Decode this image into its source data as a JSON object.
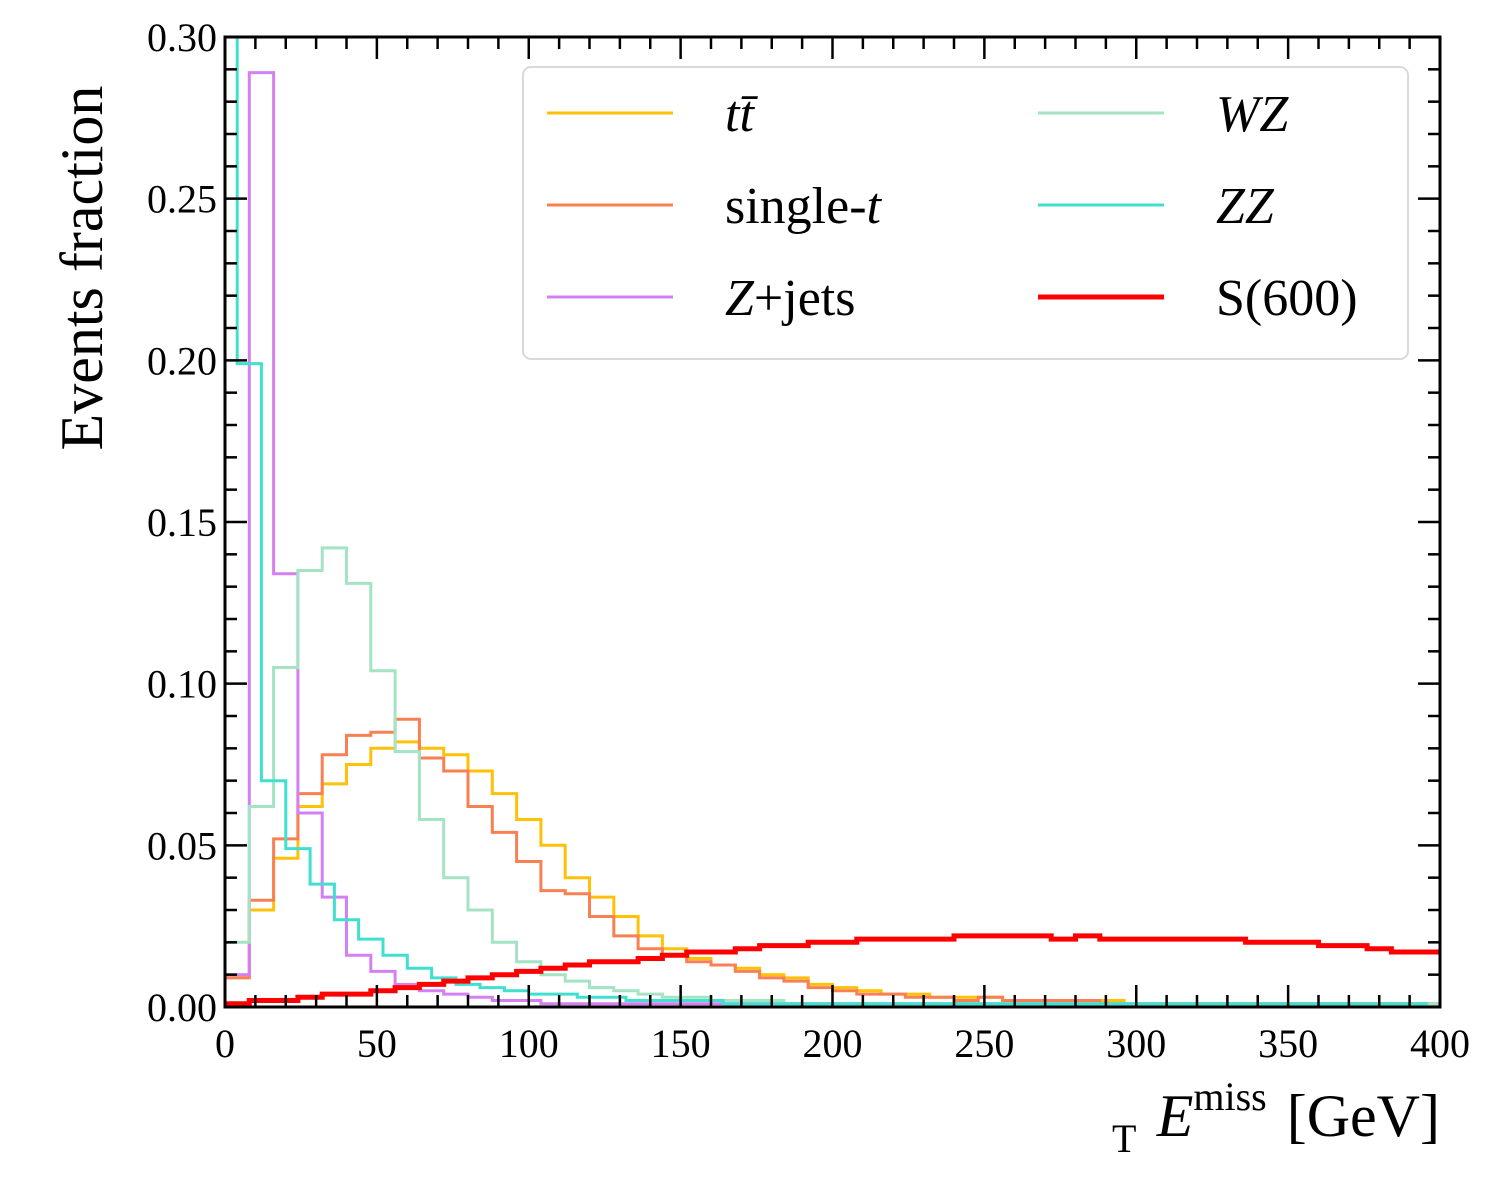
{
  "chart_data": {
    "type": "histogram-step",
    "xlabel_main": "E",
    "xlabel_sub": "T",
    "xlabel_sup": "miss",
    "xlabel_unit": "[GeV]",
    "ylabel": "Events fraction",
    "xlim": [
      0,
      400
    ],
    "ylim": [
      0,
      0.3
    ],
    "xticks": [
      0,
      50,
      100,
      150,
      200,
      250,
      300,
      350,
      400
    ],
    "xtick_labels": [
      "0",
      "50",
      "100",
      "150",
      "200",
      "250",
      "300",
      "350",
      "400"
    ],
    "yticks": [
      0,
      0.05,
      0.1,
      0.15,
      0.2,
      0.25,
      0.3
    ],
    "ytick_labels": [
      "0.00",
      "0.05",
      "0.10",
      "0.15",
      "0.20",
      "0.25",
      "0.30"
    ],
    "x_minor_step": 10,
    "y_minor_step": 0.01,
    "bin_width": 8,
    "bin_edges_start": 0,
    "legend_position": "top-right",
    "series": [
      {
        "name": "tt̄",
        "legend_parts": [
          {
            "t": "t",
            "italic": true
          },
          {
            "t": "t̄",
            "italic": true
          }
        ],
        "color": "#ffc107",
        "width": 3,
        "values": [
          0.01,
          0.03,
          0.046,
          0.062,
          0.069,
          0.075,
          0.08,
          0.082,
          0.08,
          0.078,
          0.073,
          0.066,
          0.058,
          0.05,
          0.04,
          0.034,
          0.028,
          0.022,
          0.018,
          0.015,
          0.013,
          0.012,
          0.01,
          0.009,
          0.007,
          0.006,
          0.005,
          0.004,
          0.004,
          0.003,
          0.003,
          0.003,
          0.002,
          0.002,
          0.002,
          0.002,
          0.002,
          0.001,
          0.001,
          0.001,
          0.001,
          0.001,
          0.001,
          0.001,
          0.001,
          0.001,
          0.001,
          0.001,
          0.001,
          0.001
        ]
      },
      {
        "name": "single-t",
        "legend_parts": [
          {
            "t": "single-",
            "italic": false
          },
          {
            "t": "t",
            "italic": true
          }
        ],
        "color": "#f88053",
        "width": 3,
        "values": [
          0.009,
          0.033,
          0.052,
          0.066,
          0.078,
          0.084,
          0.085,
          0.089,
          0.077,
          0.073,
          0.062,
          0.054,
          0.045,
          0.036,
          0.035,
          0.028,
          0.022,
          0.018,
          0.016,
          0.014,
          0.013,
          0.011,
          0.009,
          0.008,
          0.006,
          0.005,
          0.004,
          0.004,
          0.003,
          0.003,
          0.002,
          0.003,
          0.002,
          0.002,
          0.002,
          0.002,
          0.001,
          0.001,
          0.001,
          0.001,
          0.001,
          0.001,
          0.001,
          0.001,
          0.001,
          0.001,
          0.001,
          0.001,
          0.001,
          0.001
        ]
      },
      {
        "name": "Z+jets",
        "legend_parts": [
          {
            "t": "Z",
            "italic": true
          },
          {
            "t": "+jets",
            "italic": false
          }
        ],
        "color": "#d580f2",
        "width": 3,
        "values": [
          0.01,
          0.289,
          0.134,
          0.06,
          0.034,
          0.016,
          0.011,
          0.007,
          0.005,
          0.004,
          0.003,
          0.002,
          0.002,
          0.001,
          0.001,
          0.001,
          0.001,
          0.001,
          0.001,
          0.001,
          0.001,
          0.001,
          0.001,
          0.001,
          0.001,
          0.001,
          0.001,
          0.001,
          0.001,
          0.001,
          0.001,
          0.001,
          0.001,
          0.001,
          0.001,
          0.001,
          0.001,
          0.001,
          0.001,
          0.001,
          0.001,
          0.001,
          0.001,
          0.001,
          0.001,
          0.001,
          0.001,
          0.001,
          0.001,
          0.001
        ]
      },
      {
        "name": "WZ",
        "legend_parts": [
          {
            "t": "WZ",
            "italic": true
          }
        ],
        "color": "#a4e3c3",
        "width": 3,
        "values": [
          0.02,
          0.062,
          0.105,
          0.135,
          0.142,
          0.131,
          0.104,
          0.079,
          0.058,
          0.04,
          0.03,
          0.02,
          0.014,
          0.01,
          0.008,
          0.006,
          0.005,
          0.004,
          0.003,
          0.003,
          0.002,
          0.002,
          0.002,
          0.001,
          0.001,
          0.001,
          0.001,
          0.001,
          0.001,
          0.001,
          0.001,
          0.001,
          0.001,
          0.001,
          0.001,
          0.001,
          0.001,
          0.001,
          0.001,
          0.001,
          0.001,
          0.001,
          0.001,
          0.001,
          0.001,
          0.001,
          0.001,
          0.001,
          0.001,
          0.001
        ]
      },
      {
        "name": "ZZ",
        "legend_parts": [
          {
            "t": "ZZ",
            "italic": true
          }
        ],
        "color": "#40e0d0",
        "width": 3,
        "values": [
          0.3,
          0.199,
          0.07,
          0.049,
          0.038,
          0.027,
          0.021,
          0.016,
          0.012,
          0.009,
          0.007,
          0.006,
          0.005,
          0.004,
          0.004,
          0.003,
          0.003,
          0.002,
          0.002,
          0.002,
          0.002,
          0.001,
          0.001,
          0.001,
          0.001,
          0.001,
          0.001,
          0.001,
          0.001,
          0.001,
          0.001,
          0.001,
          0.001,
          0.001,
          0.001,
          0.001,
          0.001,
          0.001,
          0.001,
          0.001,
          0.001,
          0.001,
          0.001,
          0.001,
          0.001,
          0.001,
          0.001,
          0.001,
          0.001,
          0.001
        ],
        "first_bin_width": 4
      },
      {
        "name": "S(600)",
        "legend_parts": [
          {
            "t": "S(600)",
            "italic": false
          }
        ],
        "color": "#ff0000",
        "width": 5,
        "values": [
          0.001,
          0.002,
          0.002,
          0.003,
          0.004,
          0.004,
          0.005,
          0.006,
          0.007,
          0.008,
          0.009,
          0.01,
          0.011,
          0.012,
          0.013,
          0.014,
          0.014,
          0.015,
          0.016,
          0.017,
          0.017,
          0.018,
          0.019,
          0.019,
          0.02,
          0.02,
          0.021,
          0.021,
          0.021,
          0.021,
          0.022,
          0.022,
          0.022,
          0.022,
          0.021,
          0.022,
          0.021,
          0.021,
          0.021,
          0.021,
          0.021,
          0.021,
          0.02,
          0.02,
          0.02,
          0.019,
          0.019,
          0.018,
          0.017,
          0.017
        ]
      }
    ]
  }
}
